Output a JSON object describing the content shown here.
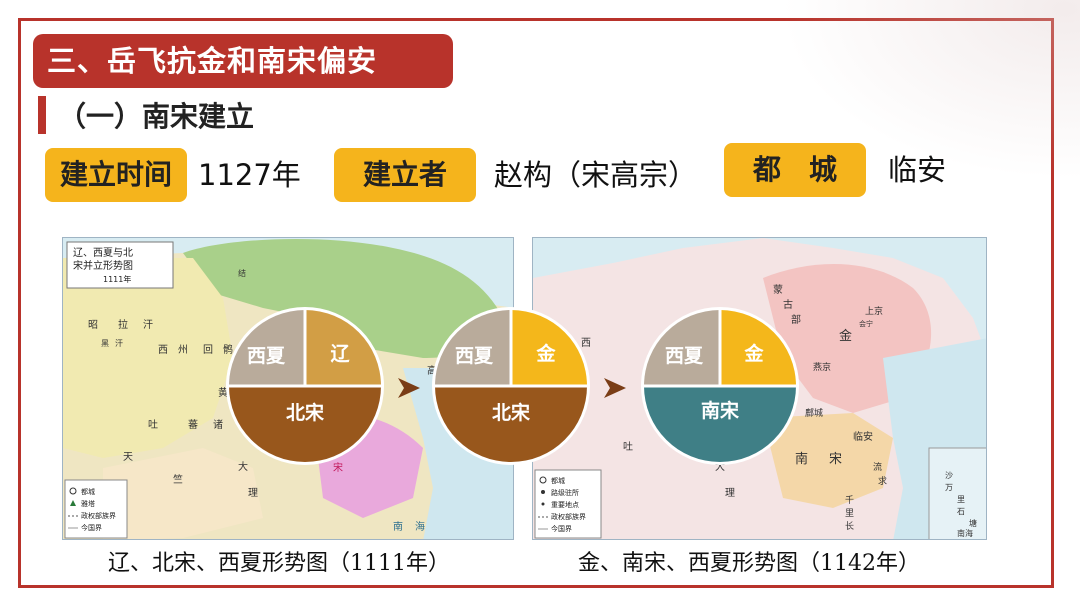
{
  "title": "三、岳飞抗金和南宋偏安",
  "subtitle": "（一）南宋建立",
  "info": {
    "time_label": "建立时间",
    "time_value": "1127年",
    "founder_label": "建立者",
    "founder_value": "赵构（宋高宗）",
    "capital_label": "都　城",
    "capital_value": "临安"
  },
  "map1": {
    "box_title_line1": "辽、西夏与北",
    "box_title_line2": "宋并立形势图",
    "box_year": "1111年",
    "legend": [
      "都城",
      "雅塔",
      "政权部族界",
      "今国界"
    ],
    "labels": [
      "昭",
      "拉",
      "汗",
      "西",
      "州",
      "回",
      "鹘",
      "黑",
      "汗",
      "吐",
      "蕃",
      "诸",
      "黄",
      "天",
      "竺",
      "大",
      "理",
      "宋",
      "南",
      "海",
      "结",
      "高"
    ],
    "caption": "辽、北宋、西夏形势图（1111年）"
  },
  "map2": {
    "legend": [
      "都城",
      "路级驻所",
      "重要地点",
      "政权部族界",
      "今国界"
    ],
    "labels": [
      "西",
      "蒙",
      "古",
      "部",
      "上京",
      "会宁",
      "金",
      "燕京",
      "鄜城",
      "临安",
      "南",
      "宋",
      "大",
      "理",
      "吐",
      "流",
      "求",
      "千",
      "里",
      "长",
      "沙",
      "万",
      "里",
      "石",
      "塘",
      "南海"
    ],
    "caption": "金、南宋、西夏形势图（1142年）"
  },
  "pies": [
    {
      "top_left": "西夏",
      "top_right": "辽",
      "bottom": "北宋"
    },
    {
      "top_left": "西夏",
      "top_right": "金",
      "bottom": "北宋"
    },
    {
      "top_left": "西夏",
      "top_right": "金",
      "bottom": "南宋"
    }
  ],
  "colors": {
    "brand_red": "#b8332b",
    "highlight_yellow": "#f5b41c",
    "xixia_gray": "#b9ab9b",
    "liao_tan": "#d29e45",
    "jin_gold": "#f4b71b",
    "northsong_brown": "#98571c",
    "southsong_teal": "#3f7f86"
  }
}
